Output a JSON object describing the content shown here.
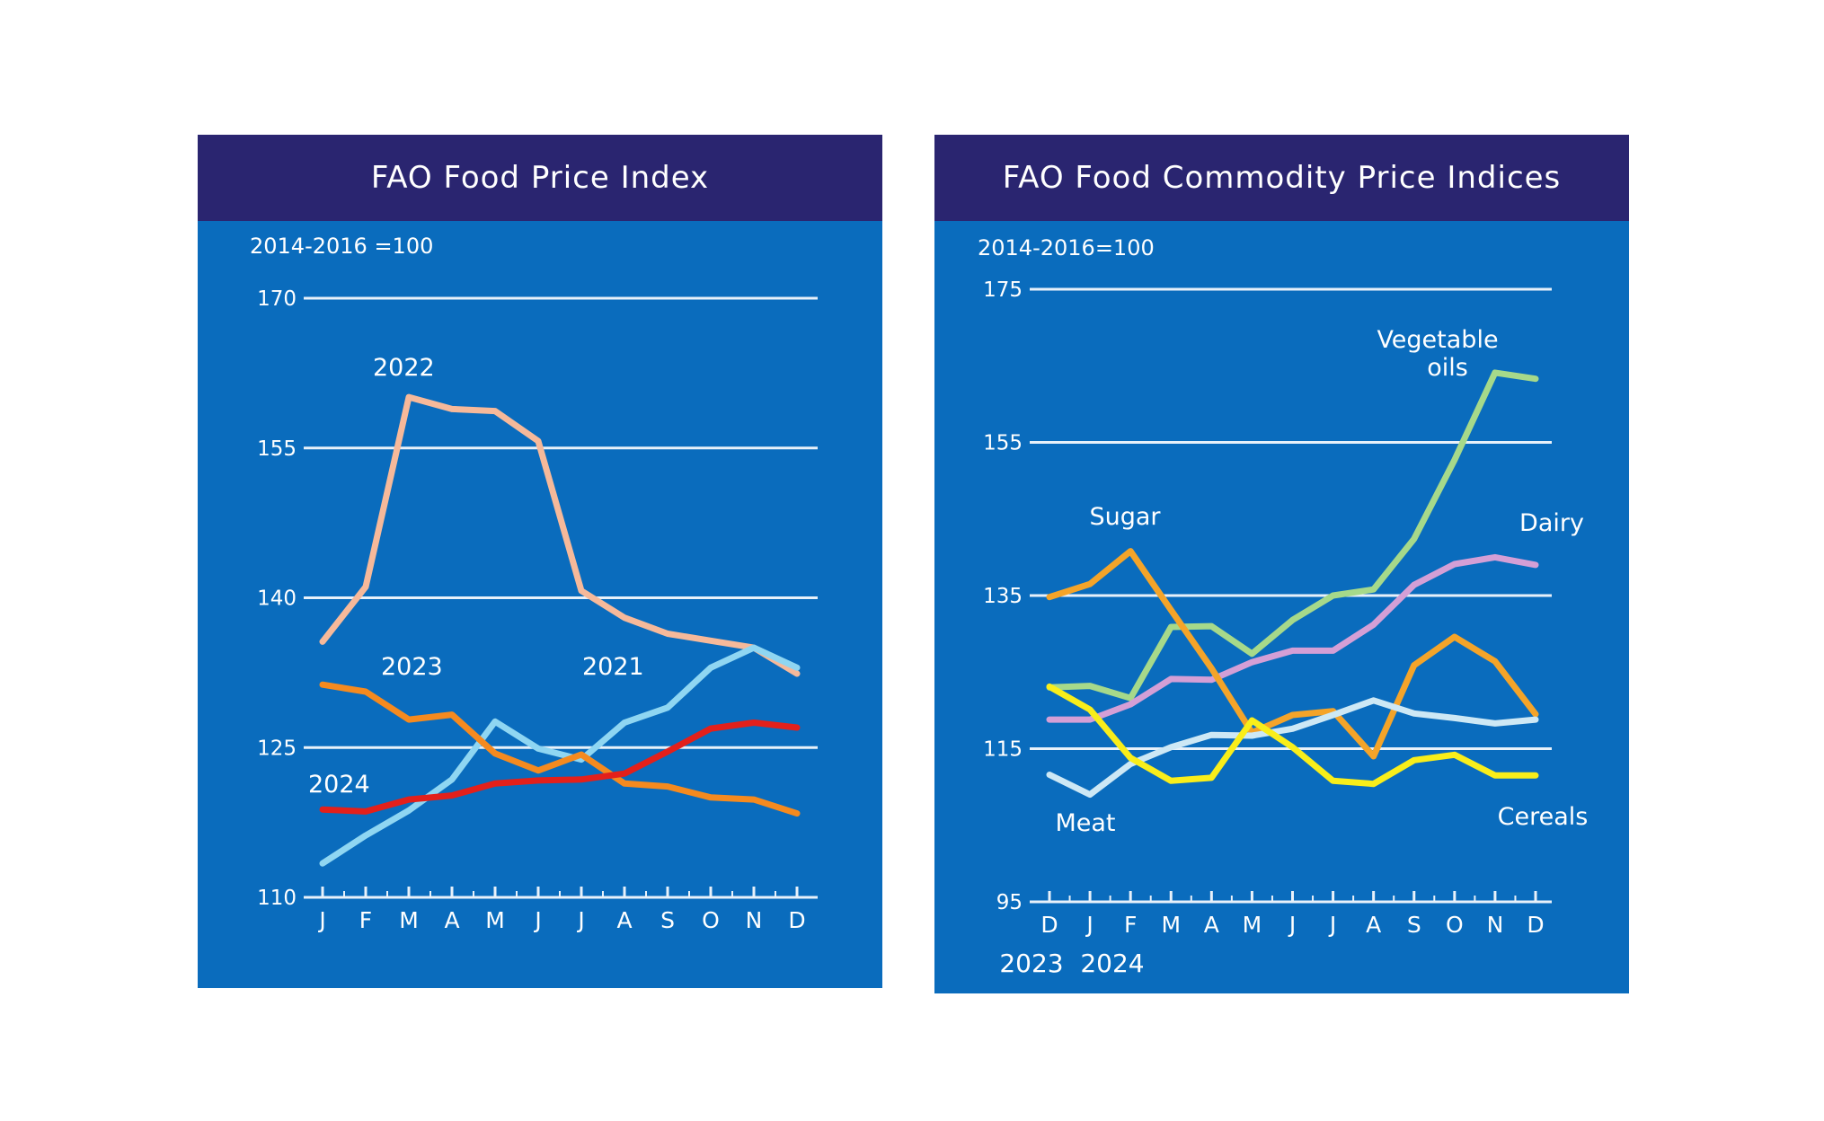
{
  "chart_data": [
    {
      "type": "line",
      "title": "FAO Food Price Index",
      "unit_label": "2014-2016 =100",
      "ylim": [
        110,
        170
      ],
      "yticks": [
        "170",
        "155",
        "140",
        "125",
        "110"
      ],
      "ytick_values": [
        170,
        155,
        140,
        125,
        110
      ],
      "categories": [
        "J",
        "F",
        "M",
        "A",
        "M",
        "J",
        "J",
        "A",
        "S",
        "O",
        "N",
        "D"
      ],
      "grid": true,
      "series": [
        {
          "name": "2022",
          "color": "#f6b99a",
          "values": [
            135.6,
            141.1,
            160.1,
            158.9,
            158.7,
            155.7,
            140.7,
            138.0,
            136.4,
            135.7,
            135.0,
            132.4
          ]
        },
        {
          "name": "2021",
          "color": "#8fd6f2",
          "values": [
            113.4,
            116.2,
            118.7,
            121.8,
            127.6,
            124.9,
            123.8,
            127.5,
            129.0,
            133.0,
            135.0,
            133.0
          ]
        },
        {
          "name": "2023",
          "color": "#f58a1f",
          "values": [
            131.3,
            130.6,
            127.8,
            128.3,
            124.4,
            122.7,
            124.3,
            121.4,
            121.1,
            120.0,
            119.8,
            118.4
          ]
        },
        {
          "name": "2024",
          "color": "#e3201b",
          "values": [
            118.8,
            118.6,
            119.8,
            120.2,
            121.4,
            121.7,
            121.8,
            122.4,
            124.6,
            126.9,
            127.5,
            127.0
          ]
        }
      ],
      "labels": {
        "s2022": "2022",
        "s2023": "2023",
        "s2021": "2021",
        "s2024": "2024"
      }
    },
    {
      "type": "line",
      "title": "FAO Food Commodity Price Indices",
      "unit_label": "2014-2016=100",
      "ylim": [
        95,
        175
      ],
      "yticks": [
        "175",
        "155",
        "135",
        "115",
        "95"
      ],
      "ytick_values": [
        175,
        155,
        135,
        115,
        95
      ],
      "categories": [
        "D",
        "J",
        "F",
        "M",
        "A",
        "M",
        "J",
        "J",
        "A",
        "S",
        "O",
        "N",
        "D"
      ],
      "year_labels": [
        "2023",
        "2024"
      ],
      "grid": true,
      "series": [
        {
          "name": "Vegetable oils",
          "color": "#a6d98a",
          "values": [
            123.0,
            123.2,
            121.6,
            130.9,
            131.0,
            127.4,
            131.8,
            135.0,
            135.8,
            142.4,
            152.7,
            164.1,
            163.3
          ]
        },
        {
          "name": "Dairy",
          "color": "#d49fd6",
          "values": [
            118.8,
            118.8,
            120.8,
            124.1,
            124.0,
            126.3,
            127.8,
            127.8,
            131.2,
            136.4,
            139.1,
            140.0,
            139.0
          ]
        },
        {
          "name": "Sugar",
          "color": "#f4a429",
          "values": [
            134.8,
            136.5,
            140.8,
            133.1,
            125.5,
            117.1,
            119.4,
            119.9,
            114.0,
            125.9,
            129.6,
            126.4,
            119.5
          ]
        },
        {
          "name": "Meat",
          "color": "#cde8f5",
          "values": [
            111.6,
            109.0,
            113.0,
            115.2,
            116.8,
            116.7,
            117.6,
            119.4,
            121.3,
            119.6,
            119.0,
            118.3,
            118.8
          ]
        },
        {
          "name": "Cereals",
          "color": "#f9ee1a",
          "values": [
            123.1,
            120.1,
            113.8,
            110.8,
            111.2,
            118.7,
            115.2,
            110.8,
            110.4,
            113.5,
            114.2,
            111.5,
            111.5
          ]
        }
      ],
      "labels": {
        "vegetable_line1": "Vegetable",
        "vegetable_line2": "oils",
        "dairy": "Dairy",
        "sugar": "Sugar",
        "meat": "Meat",
        "cereals": "Cereals"
      }
    }
  ]
}
